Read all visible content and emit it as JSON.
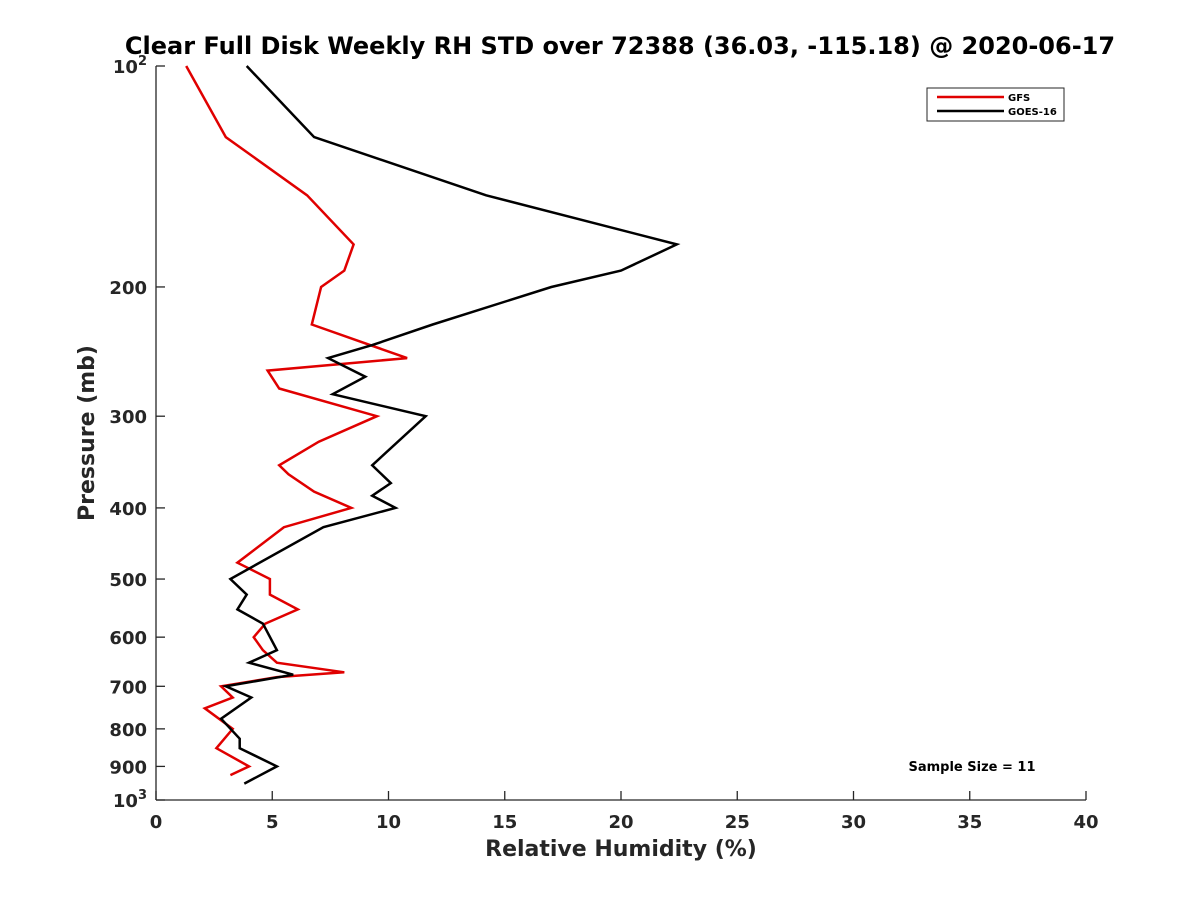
{
  "chart_data": {
    "type": "line",
    "title": "Clear Full Disk Weekly RH STD over 72388 (36.03, -115.18) @ 2020-06-17",
    "xlabel": "Relative Humidity (%)",
    "ylabel": "Pressure (mb)",
    "xlim": [
      0,
      40
    ],
    "ylim": [
      100,
      1000
    ],
    "y_scale": "log",
    "y_reversed": true,
    "x_ticks": [
      0,
      5,
      10,
      15,
      20,
      25,
      30,
      35,
      40
    ],
    "y_ticks": [
      {
        "value": 100,
        "base": "10",
        "exp": "2"
      },
      {
        "value": 200,
        "label": "200"
      },
      {
        "value": 300,
        "label": "300"
      },
      {
        "value": 400,
        "label": "400"
      },
      {
        "value": 500,
        "label": "500"
      },
      {
        "value": 600,
        "label": "600"
      },
      {
        "value": 700,
        "label": "700"
      },
      {
        "value": 800,
        "label": "800"
      },
      {
        "value": 900,
        "label": "900"
      },
      {
        "value": 1000,
        "base": "10",
        "exp": "3"
      }
    ],
    "grid": false,
    "legend_position": "top-right",
    "annotation": "Sample Size = 11",
    "series": [
      {
        "name": "GFS",
        "color": "#e00000",
        "points": [
          [
            1.3,
            100
          ],
          [
            3.0,
            125
          ],
          [
            6.5,
            150
          ],
          [
            8.5,
            175
          ],
          [
            8.1,
            190
          ],
          [
            7.1,
            200
          ],
          [
            6.7,
            225
          ],
          [
            10.8,
            250
          ],
          [
            4.8,
            260
          ],
          [
            5.3,
            275
          ],
          [
            9.5,
            300
          ],
          [
            7.0,
            325
          ],
          [
            5.3,
            350
          ],
          [
            5.7,
            360
          ],
          [
            6.8,
            380
          ],
          [
            8.4,
            400
          ],
          [
            5.5,
            425
          ],
          [
            3.5,
            475
          ],
          [
            4.9,
            500
          ],
          [
            4.9,
            525
          ],
          [
            6.1,
            550
          ],
          [
            4.7,
            575
          ],
          [
            4.2,
            600
          ],
          [
            4.6,
            625
          ],
          [
            5.2,
            650
          ],
          [
            8.1,
            670
          ],
          [
            5.2,
            680
          ],
          [
            2.8,
            700
          ],
          [
            3.3,
            725
          ],
          [
            2.1,
            750
          ],
          [
            3.3,
            800
          ],
          [
            2.6,
            850
          ],
          [
            4.0,
            900
          ],
          [
            3.2,
            925
          ]
        ]
      },
      {
        "name": "GOES-16",
        "color": "#000000",
        "points": [
          [
            3.9,
            100
          ],
          [
            6.8,
            125
          ],
          [
            14.2,
            150
          ],
          [
            22.4,
            175
          ],
          [
            20.0,
            190
          ],
          [
            17.0,
            200
          ],
          [
            11.9,
            225
          ],
          [
            9.3,
            240
          ],
          [
            7.4,
            250
          ],
          [
            9.0,
            265
          ],
          [
            7.6,
            280
          ],
          [
            11.6,
            300
          ],
          [
            9.3,
            350
          ],
          [
            10.1,
            370
          ],
          [
            9.3,
            385
          ],
          [
            10.3,
            400
          ],
          [
            7.2,
            425
          ],
          [
            3.2,
            500
          ],
          [
            3.9,
            525
          ],
          [
            3.5,
            550
          ],
          [
            4.6,
            575
          ],
          [
            5.2,
            625
          ],
          [
            4.0,
            650
          ],
          [
            5.9,
            675
          ],
          [
            3.0,
            700
          ],
          [
            4.1,
            725
          ],
          [
            2.8,
            775
          ],
          [
            3.6,
            825
          ],
          [
            3.6,
            850
          ],
          [
            5.2,
            900
          ],
          [
            3.8,
            950
          ]
        ]
      }
    ]
  }
}
